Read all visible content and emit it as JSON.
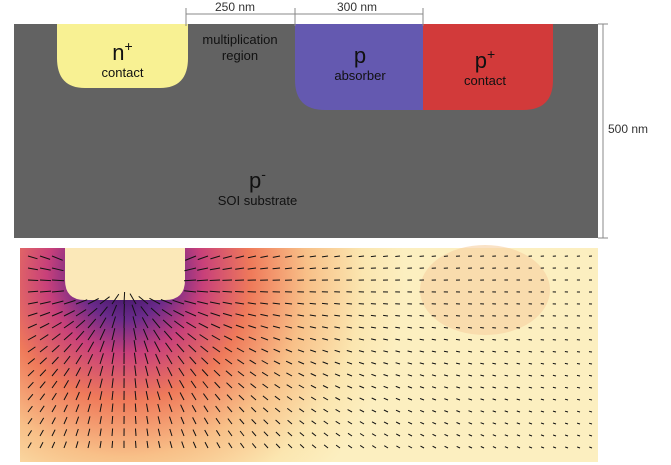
{
  "dimensions": {
    "multiplication_width": "250 nm",
    "absorber_width": "300 nm",
    "depth": "500 nm"
  },
  "regions": [
    {
      "symbol": "n",
      "superscript": "+",
      "label": "contact"
    },
    {
      "label": "multiplication region"
    },
    {
      "symbol": "p",
      "label": "absorber"
    },
    {
      "symbol": "p",
      "superscript": "+",
      "label": "contact"
    },
    {
      "symbol": "p",
      "superscript": "-",
      "label": "SOI substrate"
    }
  ]
}
